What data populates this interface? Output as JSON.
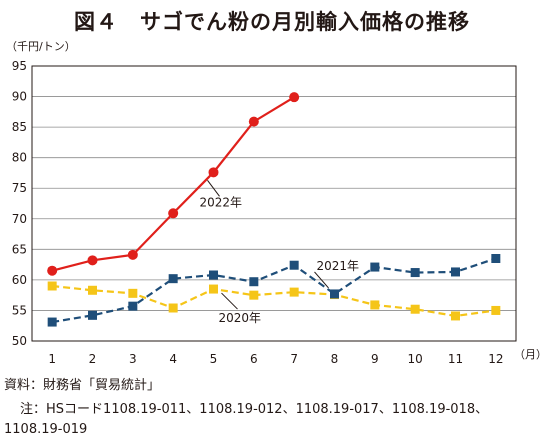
{
  "chart_data": {
    "type": "line",
    "title": "図４　サゴでん粉の月別輸入価格の推移",
    "unit_label": "（千円/トン）",
    "x_unit_label": "（月）",
    "categories": [
      "1",
      "2",
      "3",
      "4",
      "5",
      "6",
      "7",
      "8",
      "9",
      "10",
      "11",
      "12"
    ],
    "ylim": [
      50,
      95
    ],
    "yticks": [
      "50",
      "55",
      "60",
      "65",
      "70",
      "75",
      "80",
      "85",
      "90",
      "95"
    ],
    "grid": true,
    "series": [
      {
        "name": "2022年",
        "color": "#e0201b",
        "marker": "circle",
        "dash": false,
        "values": [
          61.5,
          63.2,
          64.1,
          70.9,
          77.6,
          85.9,
          89.9,
          null,
          null,
          null,
          null,
          null
        ]
      },
      {
        "name": "2021年",
        "color": "#1f4e79",
        "marker": "square",
        "dash": true,
        "values": [
          53.1,
          54.2,
          55.7,
          60.2,
          60.8,
          59.7,
          62.4,
          57.7,
          62.1,
          61.2,
          61.3,
          63.5
        ]
      },
      {
        "name": "2020年",
        "color": "#f5c518",
        "marker": "square",
        "dash": true,
        "values": [
          59.0,
          58.3,
          57.8,
          55.4,
          58.5,
          57.5,
          58.0,
          57.6,
          55.9,
          55.2,
          54.1,
          55.0
        ]
      }
    ]
  },
  "footer": {
    "source": "資料：財務省「貿易統計」",
    "note_prefix": "注：",
    "note_text": "HSコード1108.19-011、1108.19-012、1108.19-017、1108.19-018、1108.19-019"
  }
}
